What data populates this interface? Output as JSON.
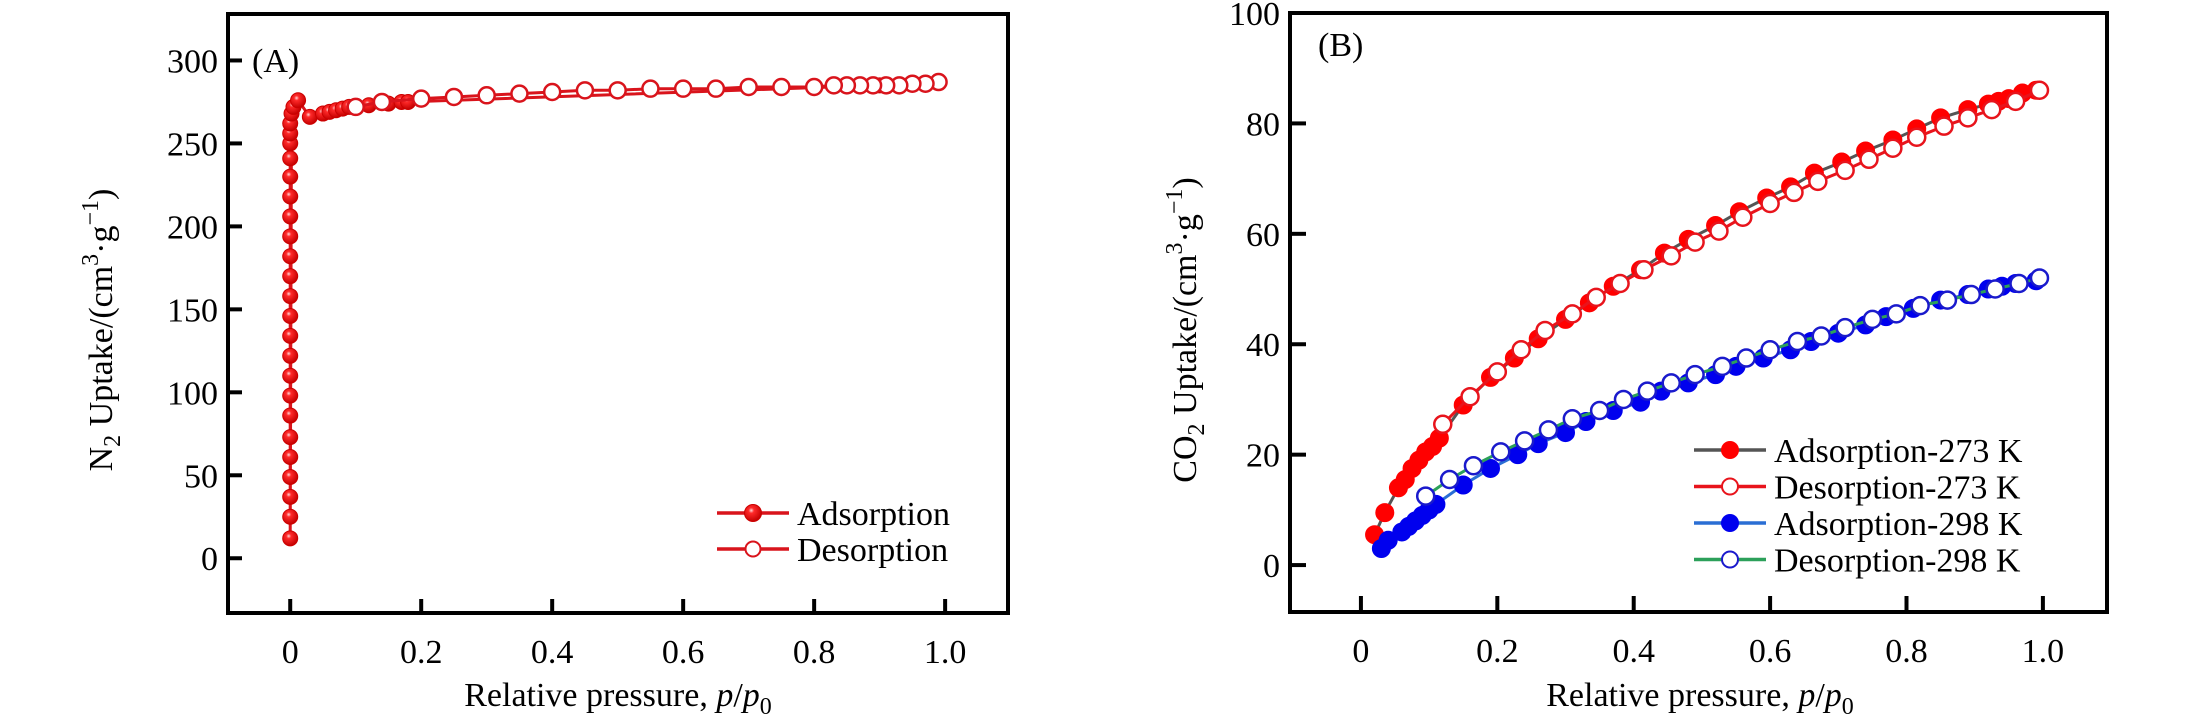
{
  "chart_data": [
    {
      "type": "scatter",
      "panel_label": "(A)",
      "title": "",
      "xlabel": "Relative pressure, p/p0",
      "xlabel_parts": {
        "main": "Relative pressure, ",
        "italic": "p",
        "slash": "/",
        "italic2": "p",
        "sub": "0"
      },
      "ylabel": "N2 Uptake/(cm3·g−1)",
      "ylabel_parts": {
        "a": "N",
        "a_sub": "2",
        "b": " Uptake/(cm",
        "b_sup": "3",
        "c": "·g",
        "c_sup": "−1",
        "d": ")"
      },
      "xlim": [
        -0.095,
        1.096
      ],
      "ylim": [
        -33,
        328
      ],
      "xticks": [
        0,
        0.2,
        0.4,
        0.6,
        0.8,
        1.0
      ],
      "xtick_labels": [
        "0",
        "0.2",
        "0.4",
        "0.6",
        "0.8",
        "1.0"
      ],
      "yticks": [
        0,
        50,
        100,
        150,
        200,
        250,
        300
      ],
      "ytick_labels": [
        "0",
        "50",
        "100",
        "150",
        "200",
        "250",
        "300"
      ],
      "grid": false,
      "legend_position": "bottom-right",
      "series": [
        {
          "name": "Adsorption",
          "color": "#e8000b",
          "line_color": "#d9141c",
          "marker": "filled-sphere",
          "x": [
            0.0,
            0.0,
            0.0,
            0.0,
            0.0,
            0.0,
            0.0,
            0.0,
            0.0,
            0.0,
            0.0,
            0.0,
            0.0,
            0.0,
            0.0,
            0.0,
            0.0,
            0.0,
            0.0,
            0.0,
            0.0,
            0.0,
            0.0,
            0.002,
            0.005,
            0.012,
            0.03,
            0.05,
            0.06,
            0.07,
            0.08,
            0.09,
            0.1,
            0.12,
            0.15,
            0.17,
            0.18,
            0.9,
            0.95,
            0.99
          ],
          "y": [
            12,
            25,
            37,
            49,
            61,
            73,
            86,
            98,
            110,
            122,
            134,
            146,
            158,
            170,
            182,
            194,
            206,
            218,
            230,
            241,
            250,
            256,
            262,
            268,
            272,
            276,
            266,
            268,
            269,
            270,
            271,
            272,
            272,
            273,
            274,
            275,
            275,
            285,
            286,
            287
          ]
        },
        {
          "name": "Desorption",
          "color": "#ffffff",
          "edge_color": "#d9141c",
          "line_color": "#d9141c",
          "marker": "open-circle",
          "x": [
            0.99,
            0.97,
            0.95,
            0.93,
            0.91,
            0.89,
            0.87,
            0.85,
            0.83,
            0.8,
            0.75,
            0.7,
            0.65,
            0.6,
            0.55,
            0.5,
            0.45,
            0.4,
            0.35,
            0.3,
            0.25,
            0.2,
            0.14,
            0.1
          ],
          "y": [
            287,
            286,
            286,
            285,
            285,
            285,
            285,
            285,
            285,
            284,
            284,
            284,
            283,
            283,
            283,
            282,
            282,
            281,
            280,
            279,
            278,
            277,
            275,
            272
          ]
        }
      ]
    },
    {
      "type": "line",
      "panel_label": "(B)",
      "title": "",
      "xlabel": "Relative pressure, p/p0",
      "xlabel_parts": {
        "main": "Relative pressure, ",
        "italic": "p",
        "slash": "/",
        "italic2": "p",
        "sub": "0"
      },
      "ylabel": "CO2 Uptake/(cm3·g−1)",
      "ylabel_parts": {
        "a": "CO",
        "a_sub": "2",
        "b": " Uptake/(cm",
        "b_sup": "3",
        "c": "·g",
        "c_sup": "−1",
        "d": ")"
      },
      "xlim": [
        -0.104,
        1.094
      ],
      "ylim": [
        -8.5,
        100
      ],
      "xticks": [
        0,
        0.2,
        0.4,
        0.6,
        0.8,
        1.0
      ],
      "xtick_labels": [
        "0",
        "0.2",
        "0.4",
        "0.6",
        "0.8",
        "1.0"
      ],
      "yticks": [
        0,
        20,
        40,
        60,
        80,
        100
      ],
      "ytick_labels": [
        "0",
        "20",
        "40",
        "60",
        "80",
        "100"
      ],
      "grid": false,
      "legend_position": "bottom-right",
      "series": [
        {
          "name": "Adsorption-273 K",
          "color": "#ff0000",
          "line_color": "#555555",
          "marker": "filled-circle",
          "x": [
            0.02,
            0.035,
            0.055,
            0.065,
            0.075,
            0.085,
            0.095,
            0.105,
            0.115,
            0.15,
            0.19,
            0.225,
            0.26,
            0.3,
            0.335,
            0.37,
            0.41,
            0.445,
            0.48,
            0.52,
            0.555,
            0.595,
            0.63,
            0.665,
            0.705,
            0.74,
            0.78,
            0.815,
            0.85,
            0.89,
            0.92,
            0.935,
            0.95,
            0.97,
            0.99
          ],
          "y": [
            5.5,
            9.5,
            14,
            15.5,
            17.5,
            19,
            20.5,
            21.5,
            23,
            29,
            34,
            37.5,
            41,
            44.5,
            47.5,
            50.5,
            53.5,
            56.5,
            59,
            61.5,
            64,
            66.5,
            68.5,
            71,
            73,
            75,
            77,
            79,
            81,
            82.5,
            83.5,
            84,
            84.5,
            85.5,
            86
          ]
        },
        {
          "name": "Desorption-273 K",
          "color": "#ffffff",
          "edge_color": "#e8141c",
          "line_color": "#e8141c",
          "marker": "open-circle",
          "x": [
            0.995,
            0.96,
            0.925,
            0.89,
            0.855,
            0.815,
            0.78,
            0.745,
            0.71,
            0.67,
            0.635,
            0.6,
            0.56,
            0.525,
            0.49,
            0.455,
            0.415,
            0.38,
            0.345,
            0.31,
            0.27,
            0.235,
            0.2,
            0.16,
            0.12
          ],
          "y": [
            86,
            84,
            82.5,
            81,
            79.5,
            77.5,
            75.5,
            73.5,
            71.5,
            69.5,
            67.5,
            65.5,
            63,
            60.5,
            58.5,
            56,
            53.5,
            51,
            48.5,
            45.5,
            42.5,
            39,
            35,
            30.5,
            25.5
          ]
        },
        {
          "name": "Adsorption-298 K",
          "color": "#0000ee",
          "line_color": "#2a6ed4",
          "marker": "filled-circle",
          "x": [
            0.03,
            0.04,
            0.06,
            0.07,
            0.08,
            0.09,
            0.1,
            0.11,
            0.15,
            0.19,
            0.23,
            0.26,
            0.3,
            0.33,
            0.37,
            0.41,
            0.44,
            0.48,
            0.52,
            0.55,
            0.59,
            0.63,
            0.66,
            0.7,
            0.74,
            0.77,
            0.81,
            0.85,
            0.89,
            0.92,
            0.94,
            0.96,
            0.99
          ],
          "y": [
            3,
            4.5,
            6,
            7,
            8,
            9,
            10,
            11,
            14.5,
            17.5,
            20,
            22,
            24,
            26,
            28,
            29.5,
            31.5,
            33,
            34.5,
            36,
            37.5,
            39,
            40.5,
            42,
            43.5,
            45,
            46.5,
            48,
            49,
            50,
            50.5,
            51,
            51.5
          ]
        },
        {
          "name": "Desorption-298 K",
          "color": "#ffffff",
          "edge_color": "#1a1acc",
          "line_color": "#2ca05a",
          "marker": "open-circle",
          "x": [
            0.995,
            0.965,
            0.93,
            0.895,
            0.86,
            0.82,
            0.785,
            0.75,
            0.71,
            0.675,
            0.64,
            0.6,
            0.565,
            0.53,
            0.49,
            0.455,
            0.42,
            0.385,
            0.35,
            0.31,
            0.275,
            0.24,
            0.205,
            0.165,
            0.13,
            0.095
          ],
          "y": [
            52,
            51,
            50,
            49,
            48,
            47,
            45.5,
            44.5,
            43,
            41.5,
            40.5,
            39,
            37.5,
            36,
            34.5,
            33,
            31.5,
            30,
            28,
            26.5,
            24.5,
            22.5,
            20.5,
            18,
            15.5,
            12.5
          ]
        }
      ]
    }
  ]
}
